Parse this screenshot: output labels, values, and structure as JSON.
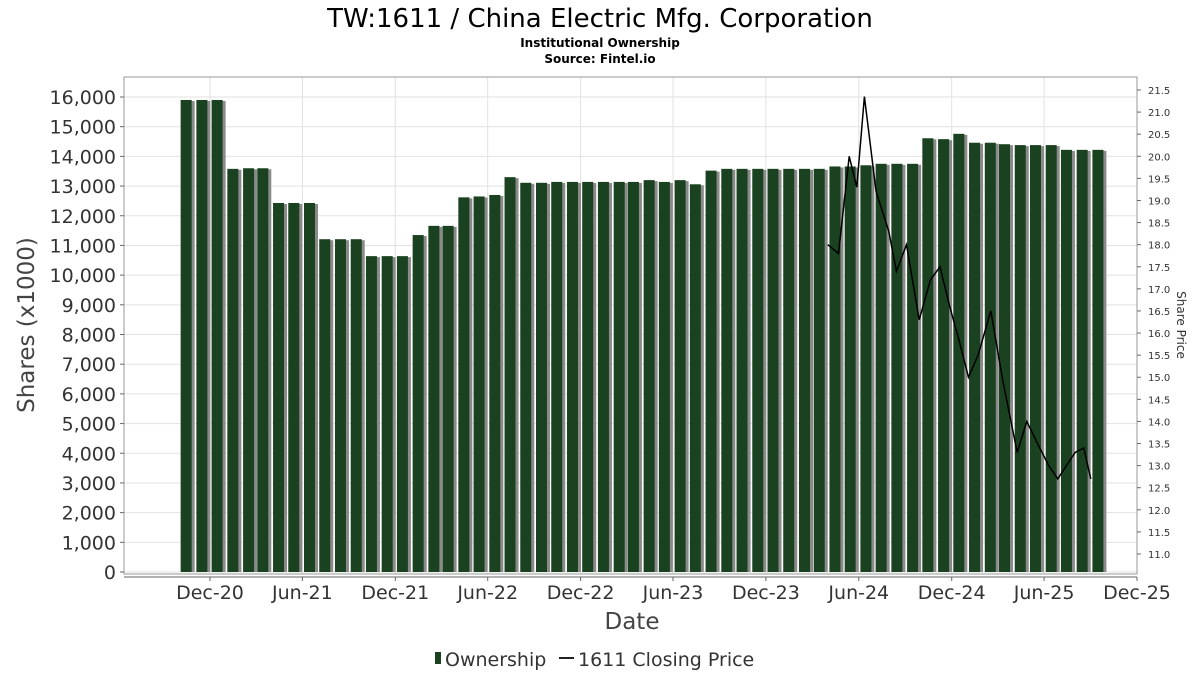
{
  "header": {
    "title": "TW:1611 / China Electric Mfg. Corporation",
    "subtitle": "Institutional Ownership",
    "source": "Source: Fintel.io"
  },
  "chart_data": {
    "type": "bar",
    "ylabel": "Shares (x1000)",
    "xlabel": "Date",
    "y2label": "Share Price",
    "ylim": [
      0,
      16700
    ],
    "y2lim": [
      10.6,
      21.7
    ],
    "x_range": [
      "2020-08-01",
      "2025-12-15"
    ],
    "left_ticks": [
      0,
      1000,
      2000,
      3000,
      4000,
      5000,
      6000,
      7000,
      8000,
      9000,
      10000,
      11000,
      12000,
      13000,
      14000,
      15000,
      16000
    ],
    "left_tick_labels": [
      "0",
      "1,000",
      "2,000",
      "3,000",
      "4,000",
      "5,000",
      "6,000",
      "7,000",
      "8,000",
      "9,000",
      "10,000",
      "11,000",
      "12,000",
      "13,000",
      "14,000",
      "15,000",
      "16,000"
    ],
    "right_ticks": [
      11.0,
      11.5,
      12.0,
      12.5,
      13.0,
      13.5,
      14.0,
      14.5,
      15.0,
      15.5,
      16.0,
      16.5,
      17.0,
      17.5,
      18.0,
      18.5,
      19.0,
      19.5,
      20.0,
      20.5,
      21.0,
      21.5
    ],
    "right_tick_labels": [
      "11.0",
      "11.5",
      "12.0",
      "12.5",
      "13.0",
      "13.5",
      "14.0",
      "14.5",
      "15.0",
      "15.5",
      "16.0",
      "16.5",
      "17.0",
      "17.5",
      "18.0",
      "18.5",
      "19.0",
      "19.5",
      "20.0",
      "20.5",
      "21.0",
      "21.5"
    ],
    "x_ticks": [
      {
        "label": "Dec-20",
        "date": "2020-12-01"
      },
      {
        "label": "Jun-21",
        "date": "2021-06-01"
      },
      {
        "label": "Dec-21",
        "date": "2021-12-01"
      },
      {
        "label": "Jun-22",
        "date": "2022-06-01"
      },
      {
        "label": "Dec-22",
        "date": "2022-12-01"
      },
      {
        "label": "Jun-23",
        "date": "2023-06-01"
      },
      {
        "label": "Dec-23",
        "date": "2023-12-01"
      },
      {
        "label": "Jun-24",
        "date": "2024-06-01"
      },
      {
        "label": "Dec-24",
        "date": "2024-12-01"
      },
      {
        "label": "Jun-25",
        "date": "2025-06-01"
      },
      {
        "label": "Dec-25",
        "date": "2025-12-01"
      }
    ],
    "series": [
      {
        "name": "Ownership",
        "color": "#1b4220",
        "dates": [
          "2020-10-15",
          "2020-11-15",
          "2020-12-15",
          "2021-01-15",
          "2021-02-15",
          "2021-03-15",
          "2021-04-15",
          "2021-05-15",
          "2021-06-15",
          "2021-07-15",
          "2021-08-15",
          "2021-09-15",
          "2021-10-15",
          "2021-11-15",
          "2021-12-15",
          "2022-01-15",
          "2022-02-15",
          "2022-03-15",
          "2022-04-15",
          "2022-05-15",
          "2022-06-15",
          "2022-07-15",
          "2022-08-15",
          "2022-09-15",
          "2022-10-15",
          "2022-11-15",
          "2022-12-15",
          "2023-01-15",
          "2023-02-15",
          "2023-03-15",
          "2023-04-15",
          "2023-05-15",
          "2023-06-15",
          "2023-07-15",
          "2023-08-15",
          "2023-09-15",
          "2023-10-15",
          "2023-11-15",
          "2023-12-15",
          "2024-01-15",
          "2024-02-15",
          "2024-03-15",
          "2024-04-15",
          "2024-05-15",
          "2024-06-15",
          "2024-07-15",
          "2024-08-15",
          "2024-09-15",
          "2024-10-15",
          "2024-11-15",
          "2024-12-15",
          "2025-01-15",
          "2025-02-15",
          "2025-03-15",
          "2025-04-15",
          "2025-05-15",
          "2025-06-15",
          "2025-07-15",
          "2025-08-15",
          "2025-09-15"
        ],
        "values": [
          15900,
          15900,
          15900,
          13580,
          13600,
          13600,
          12430,
          12430,
          12430,
          11210,
          11210,
          11210,
          10640,
          10640,
          10640,
          11350,
          11660,
          11660,
          12620,
          12650,
          12700,
          13300,
          13110,
          13110,
          13140,
          13140,
          13140,
          13140,
          13140,
          13140,
          13200,
          13140,
          13200,
          13060,
          13520,
          13580,
          13580,
          13580,
          13580,
          13580,
          13580,
          13580,
          13660,
          13660,
          13700,
          13750,
          13750,
          13750,
          14610,
          14580,
          14760,
          14460,
          14460,
          14410,
          14380,
          14380,
          14380,
          14220,
          14220,
          14220
        ]
      },
      {
        "name": "1611 Closing Price",
        "color": "#000000",
        "points": [
          {
            "date": "2024-04-01",
            "price": 18.0
          },
          {
            "date": "2024-04-22",
            "price": 17.8
          },
          {
            "date": "2024-05-13",
            "price": 20.0
          },
          {
            "date": "2024-05-28",
            "price": 19.3
          },
          {
            "date": "2024-06-12",
            "price": 21.35
          },
          {
            "date": "2024-07-05",
            "price": 19.2
          },
          {
            "date": "2024-07-30",
            "price": 18.3
          },
          {
            "date": "2024-08-14",
            "price": 17.4
          },
          {
            "date": "2024-09-03",
            "price": 18.0
          },
          {
            "date": "2024-09-28",
            "price": 16.3
          },
          {
            "date": "2024-10-20",
            "price": 17.2
          },
          {
            "date": "2024-11-08",
            "price": 17.5
          },
          {
            "date": "2024-11-27",
            "price": 16.6
          },
          {
            "date": "2024-12-14",
            "price": 15.9
          },
          {
            "date": "2025-01-03",
            "price": 15.0
          },
          {
            "date": "2025-01-22",
            "price": 15.5
          },
          {
            "date": "2025-02-16",
            "price": 16.5
          },
          {
            "date": "2025-03-12",
            "price": 14.9
          },
          {
            "date": "2025-04-09",
            "price": 13.3
          },
          {
            "date": "2025-04-28",
            "price": 14.0
          },
          {
            "date": "2025-05-19",
            "price": 13.5
          },
          {
            "date": "2025-06-10",
            "price": 13.0
          },
          {
            "date": "2025-06-28",
            "price": 12.7
          },
          {
            "date": "2025-07-15",
            "price": 13.0
          },
          {
            "date": "2025-08-01",
            "price": 13.3
          },
          {
            "date": "2025-08-18",
            "price": 13.4
          },
          {
            "date": "2025-09-01",
            "price": 12.7
          }
        ]
      }
    ],
    "legend": {
      "position": "bottom-center",
      "items": [
        "Ownership",
        "1611 Closing Price"
      ]
    },
    "grid": true
  }
}
